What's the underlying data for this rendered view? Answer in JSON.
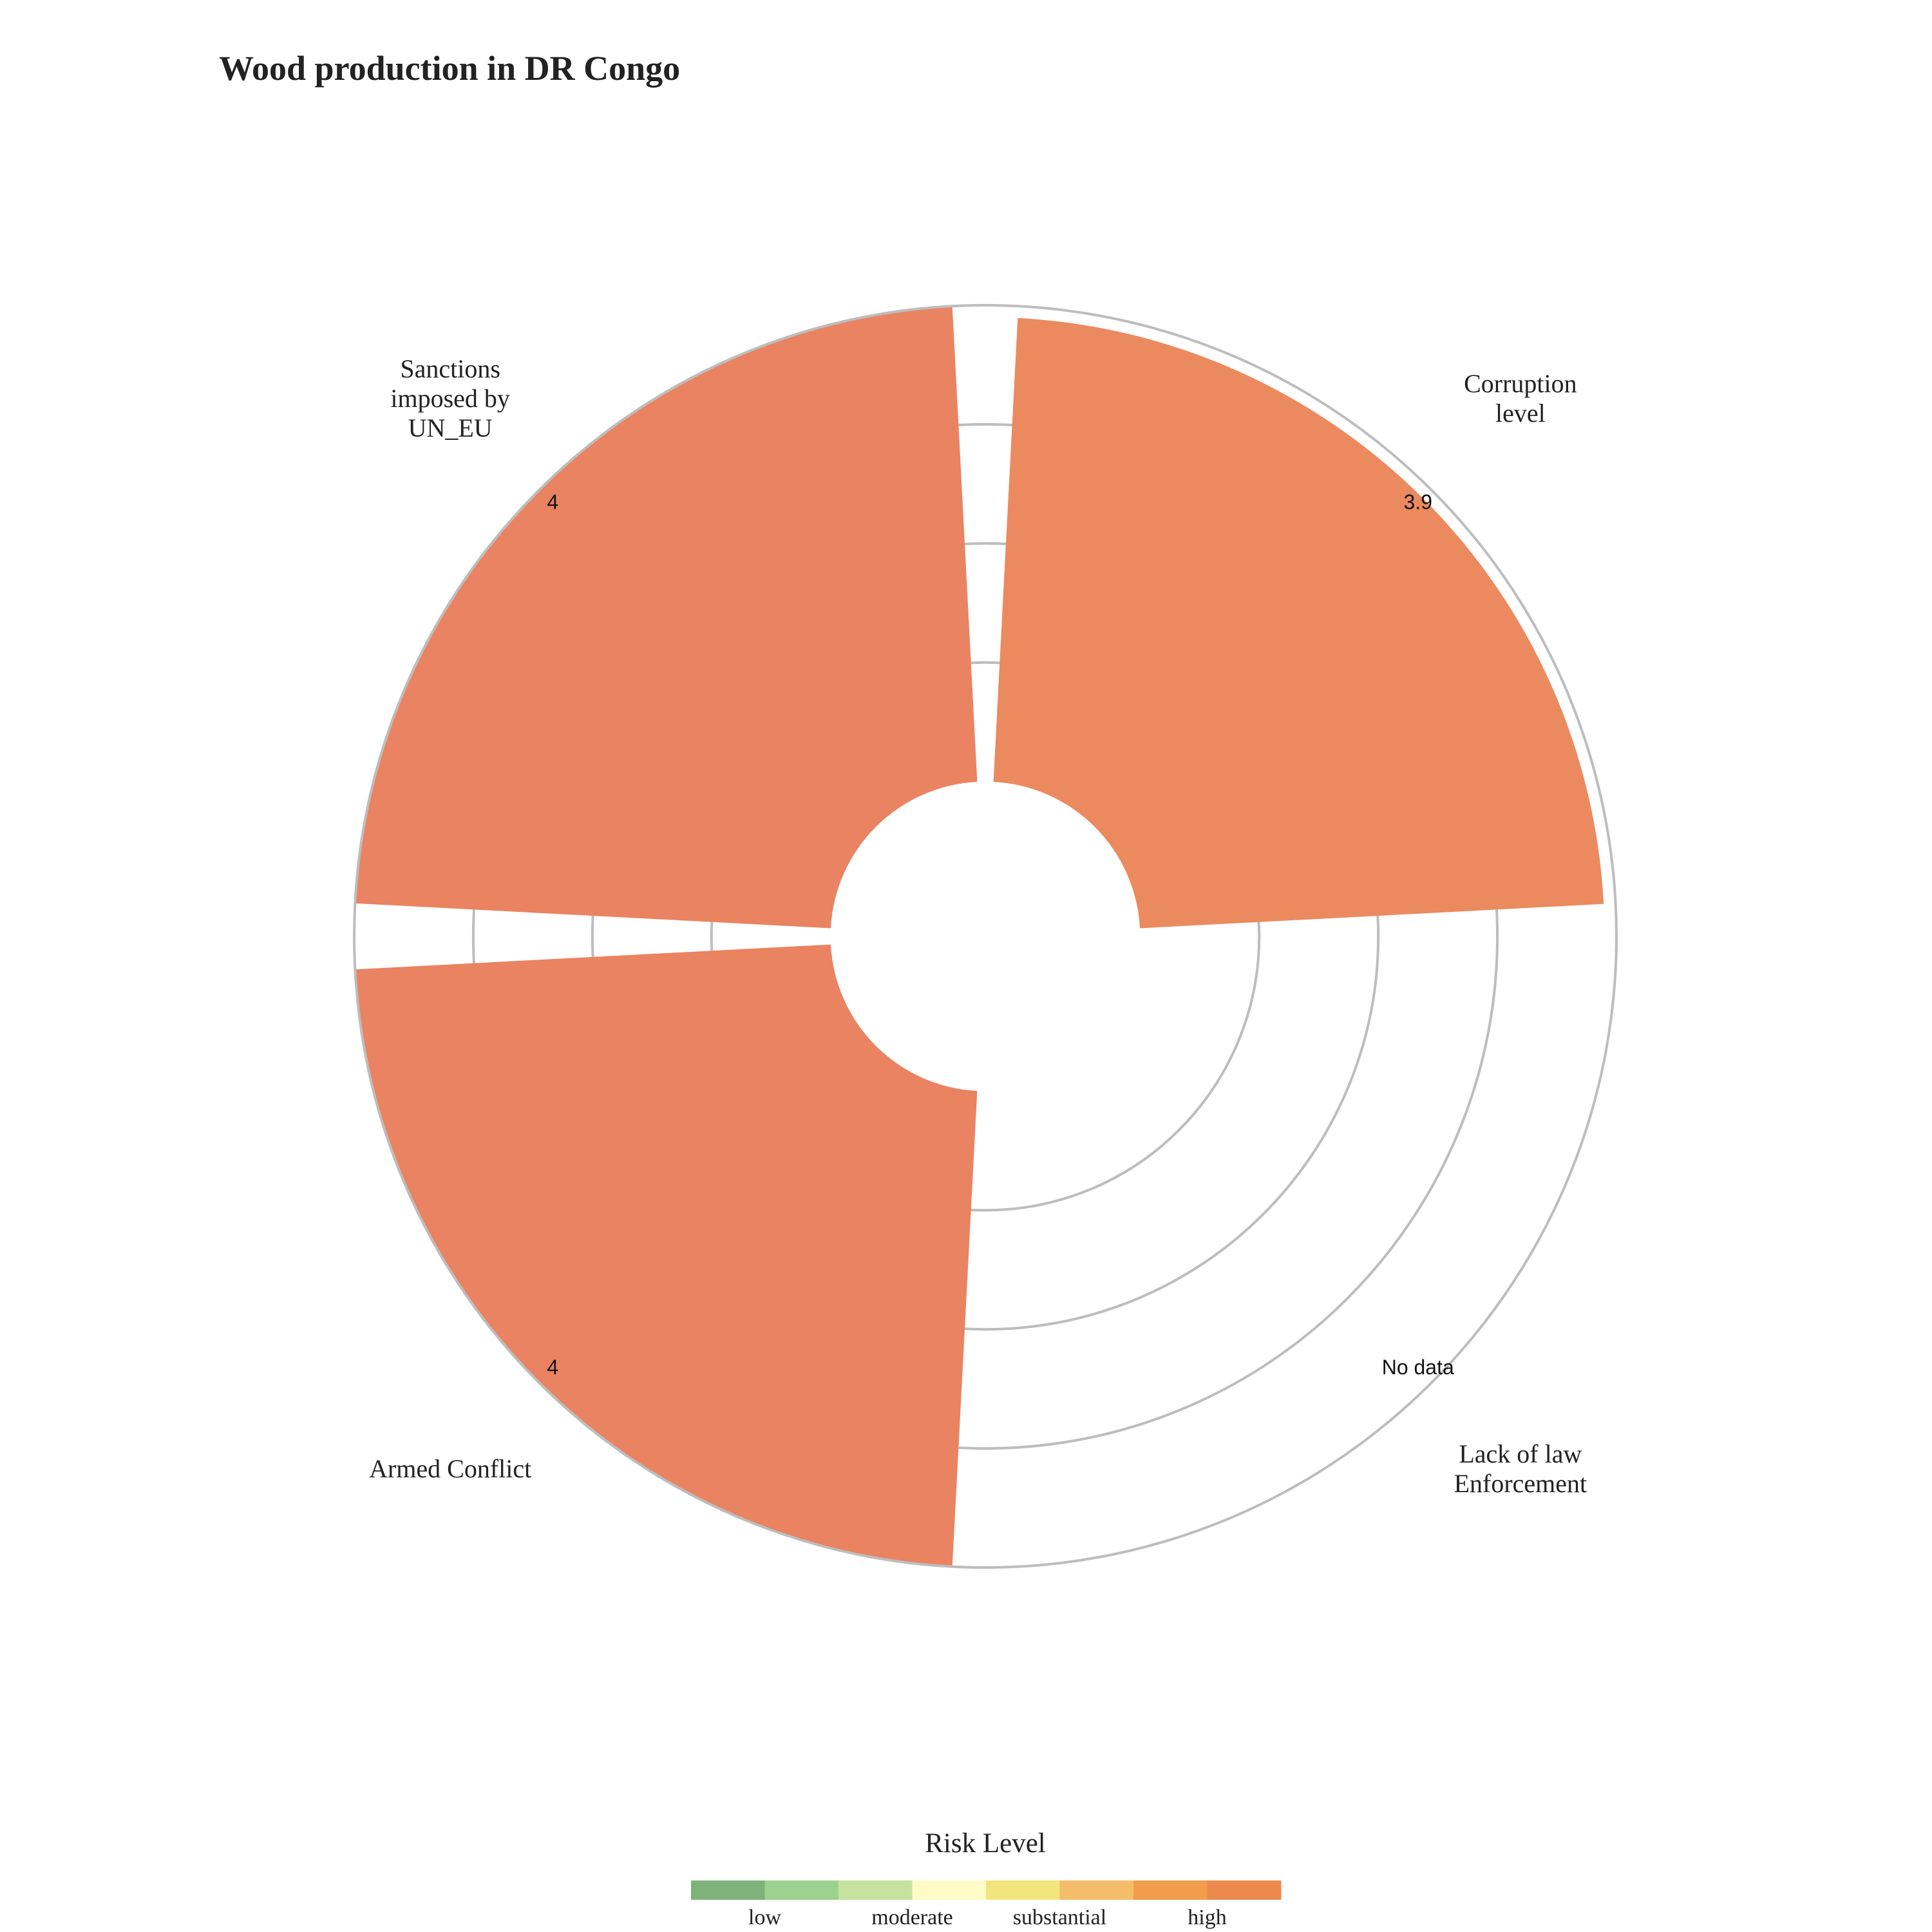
{
  "chart_data": {
    "type": "bar",
    "title": "Wood production in DR Congo",
    "categories": [
      {
        "lines": [
          "Corruption",
          "level"
        ],
        "value": 3.9,
        "label": "3.9",
        "level": "high",
        "color": "#ec8a5f"
      },
      {
        "lines": [
          "Lack of law",
          "Enforcement"
        ],
        "value": null,
        "label": "No data",
        "level": "",
        "color": ""
      },
      {
        "lines": [
          "Armed Conflict"
        ],
        "value": 4,
        "label": "4",
        "level": "high",
        "color": "#ea8361"
      },
      {
        "lines": [
          "Sanctions",
          "imposed by",
          "UN_EU"
        ],
        "value": 4,
        "label": "4",
        "level": "high",
        "color": "#ea8361"
      }
    ],
    "radial_range": [
      -1.3,
      4
    ],
    "grid": true,
    "legend": {
      "title": "Risk Level",
      "position": "bottom",
      "colors": [
        "#7fb27a",
        "#9dd18f",
        "#c7e29f",
        "#fffbc6",
        "#f2e57b",
        "#f3bd6a",
        "#f19d4c",
        "#ec8a4e"
      ],
      "labels": [
        "low",
        "moderate",
        "substantial",
        "high"
      ]
    }
  }
}
